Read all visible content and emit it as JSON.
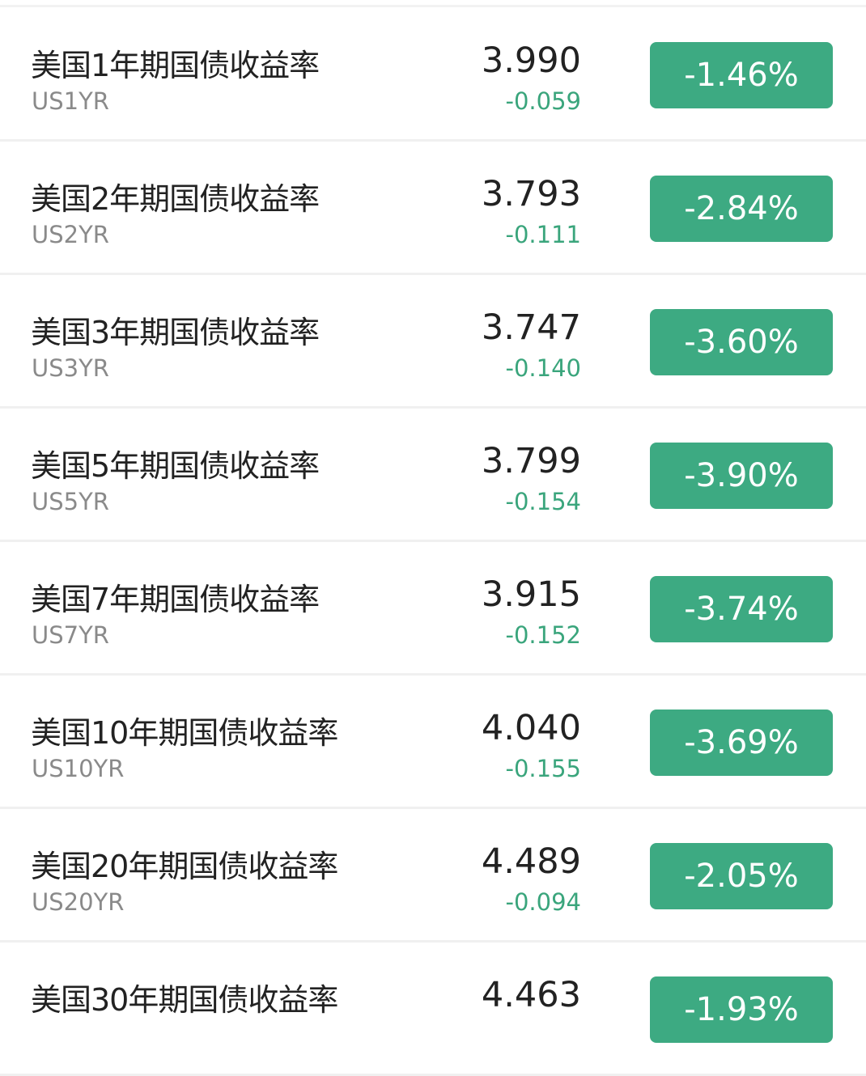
{
  "accent_color": "#3daa82",
  "rows": [
    {
      "name": "美国1年期国债收益率",
      "code": "US1YR",
      "price": "3.990",
      "change": "-0.059",
      "percent": "-1.46%"
    },
    {
      "name": "美国2年期国债收益率",
      "code": "US2YR",
      "price": "3.793",
      "change": "-0.111",
      "percent": "-2.84%"
    },
    {
      "name": "美国3年期国债收益率",
      "code": "US3YR",
      "price": "3.747",
      "change": "-0.140",
      "percent": "-3.60%"
    },
    {
      "name": "美国5年期国债收益率",
      "code": "US5YR",
      "price": "3.799",
      "change": "-0.154",
      "percent": "-3.90%"
    },
    {
      "name": "美国7年期国债收益率",
      "code": "US7YR",
      "price": "3.915",
      "change": "-0.152",
      "percent": "-3.74%"
    },
    {
      "name": "美国10年期国债收益率",
      "code": "US10YR",
      "price": "4.040",
      "change": "-0.155",
      "percent": "-3.69%"
    },
    {
      "name": "美国20年期国债收益率",
      "code": "US20YR",
      "price": "4.489",
      "change": "-0.094",
      "percent": "-2.05%"
    },
    {
      "name": "美国30年期国债收益率",
      "price": "4.463",
      "percent": "-1.93%"
    }
  ]
}
